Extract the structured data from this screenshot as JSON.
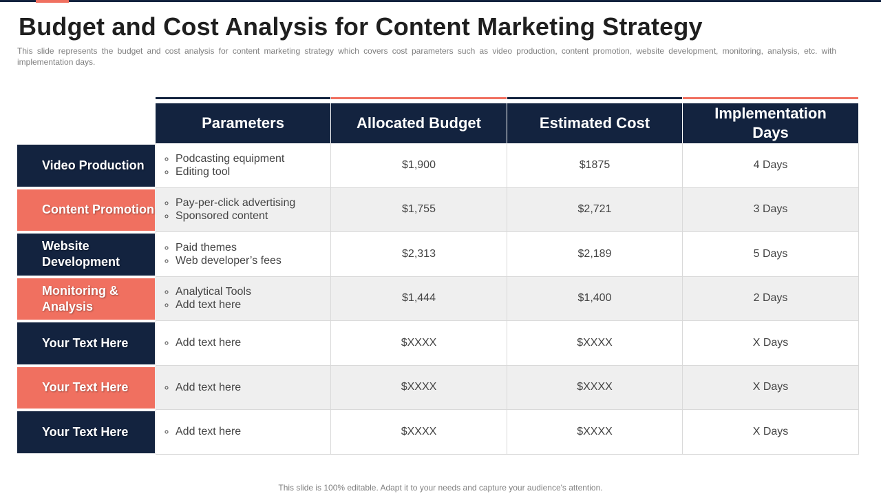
{
  "header": {
    "title": "Budget and Cost Analysis for Content Marketing Strategy",
    "subtitle": "This slide represents the budget and cost analysis for content marketing strategy which covers cost parameters such as video production, content promotion, website development, monitoring, analysis, etc. with implementation days."
  },
  "table": {
    "columns": [
      "Parameters",
      "Allocated Budget",
      "Estimated Cost",
      "Implementation Days"
    ],
    "rows": [
      {
        "label": "Video Production",
        "items": [
          "Podcasting equipment",
          "Editing tool"
        ],
        "budget": "$1,900",
        "cost": "$1875",
        "days": "4 Days"
      },
      {
        "label": "Content Promotion",
        "items": [
          "Pay-per-click advertising",
          "Sponsored content"
        ],
        "budget": "$1,755",
        "cost": "$2,721",
        "days": "3 Days"
      },
      {
        "label": "Website Development",
        "items": [
          "Paid themes",
          "Web developer’s fees"
        ],
        "budget": "$2,313",
        "cost": "$2,189",
        "days": "5 Days"
      },
      {
        "label": "Monitoring & Analysis",
        "items": [
          "Analytical Tools",
          "Add text here"
        ],
        "budget": "$1,444",
        "cost": "$1,400",
        "days": "2 Days"
      },
      {
        "label": "Your Text Here",
        "items": [
          "Add text here"
        ],
        "budget": "$XXXX",
        "cost": "$XXXX",
        "days": "X Days"
      },
      {
        "label": "Your Text Here",
        "items": [
          "Add text here"
        ],
        "budget": "$XXXX",
        "cost": "$XXXX",
        "days": "X Days"
      },
      {
        "label": "Your Text Here",
        "items": [
          "Add text here"
        ],
        "budget": "$XXXX",
        "cost": "$XXXX",
        "days": "X Days"
      }
    ]
  },
  "footer": "This slide is 100% editable. Adapt it to your needs and capture your audience's attention."
}
